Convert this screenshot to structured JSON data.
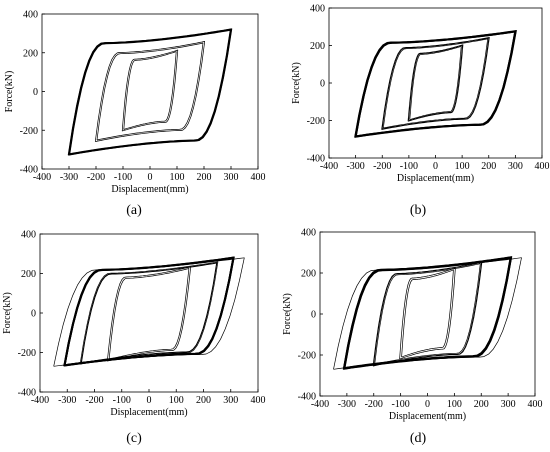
{
  "chart_data": [
    {
      "type": "line",
      "panel_label": "(a)",
      "xlabel": "Displacement(mm)",
      "ylabel": "Force(kN)",
      "xlim": [
        -400,
        400
      ],
      "ylim": [
        -400,
        400
      ],
      "x_ticks": [
        "-400",
        "-300",
        "-200",
        "-100",
        "0",
        "100",
        "200",
        "300",
        "400"
      ],
      "y_ticks": [
        "400",
        "200",
        "0",
        "-200",
        "-400"
      ],
      "loops": [
        {
          "amp": 100,
          "fmax": 210,
          "fmin": -200,
          "cycles": 2
        },
        {
          "amp": 200,
          "fmax": 255,
          "fmin": -255,
          "cycles": 2
        },
        {
          "amp": 300,
          "fmax": 320,
          "fmin": -325,
          "cycles": 6
        }
      ]
    },
    {
      "type": "line",
      "panel_label": "(b)",
      "xlabel": "Displacement(mm)",
      "ylabel": "Force(kN)",
      "xlim": [
        -400,
        400
      ],
      "ylim": [
        -400,
        400
      ],
      "x_ticks": [
        "-400",
        "-300",
        "-200",
        "-100",
        "0",
        "100",
        "200",
        "300",
        "400"
      ],
      "y_ticks": [
        "400",
        "200",
        "0",
        "-200",
        "-400"
      ],
      "loops": [
        {
          "amp": 100,
          "fmax": 200,
          "fmin": -200,
          "cycles": 3
        },
        {
          "amp": 200,
          "fmax": 240,
          "fmin": -245,
          "cycles": 3
        },
        {
          "amp": 300,
          "fmax": 275,
          "fmin": -285,
          "cycles": 8
        }
      ]
    },
    {
      "type": "line",
      "panel_label": "(c)",
      "xlabel": "Displacement(mm)",
      "ylabel": "Force(kN)",
      "xlim": [
        -400,
        400
      ],
      "ylim": [
        -400,
        400
      ],
      "x_ticks": [
        "-400",
        "-300",
        "-200",
        "-100",
        "0",
        "100",
        "200",
        "300",
        "400"
      ],
      "y_ticks": [
        "400",
        "200",
        "0",
        "-200",
        "-400"
      ],
      "loops": [
        {
          "amp": 150,
          "fmax": 230,
          "fmin": -240,
          "cycles": 2
        },
        {
          "amp": 250,
          "fmax": 255,
          "fmin": -255,
          "cycles": 3
        },
        {
          "amp": 310,
          "fmax": 280,
          "fmin": -265,
          "cycles": 12
        },
        {
          "amp": 350,
          "fmax": 280,
          "fmin": -270,
          "cycles": 1
        }
      ]
    },
    {
      "type": "line",
      "panel_label": "(d)",
      "xlabel": "Displacement(mm)",
      "ylabel": "Force(kN)",
      "xlim": [
        -400,
        400
      ],
      "ylim": [
        -400,
        400
      ],
      "x_ticks": [
        "-400",
        "-300",
        "-200",
        "-100",
        "0",
        "100",
        "200",
        "300",
        "400"
      ],
      "y_ticks": [
        "400",
        "200",
        "0",
        "-200",
        "-400"
      ],
      "loops": [
        {
          "amp": 100,
          "fmax": 220,
          "fmin": -215,
          "cycles": 2
        },
        {
          "amp": 200,
          "fmax": 250,
          "fmin": -250,
          "cycles": 3
        },
        {
          "amp": 310,
          "fmax": 275,
          "fmin": -265,
          "cycles": 14
        },
        {
          "amp": 350,
          "fmax": 275,
          "fmin": -270,
          "cycles": 1
        }
      ]
    }
  ]
}
